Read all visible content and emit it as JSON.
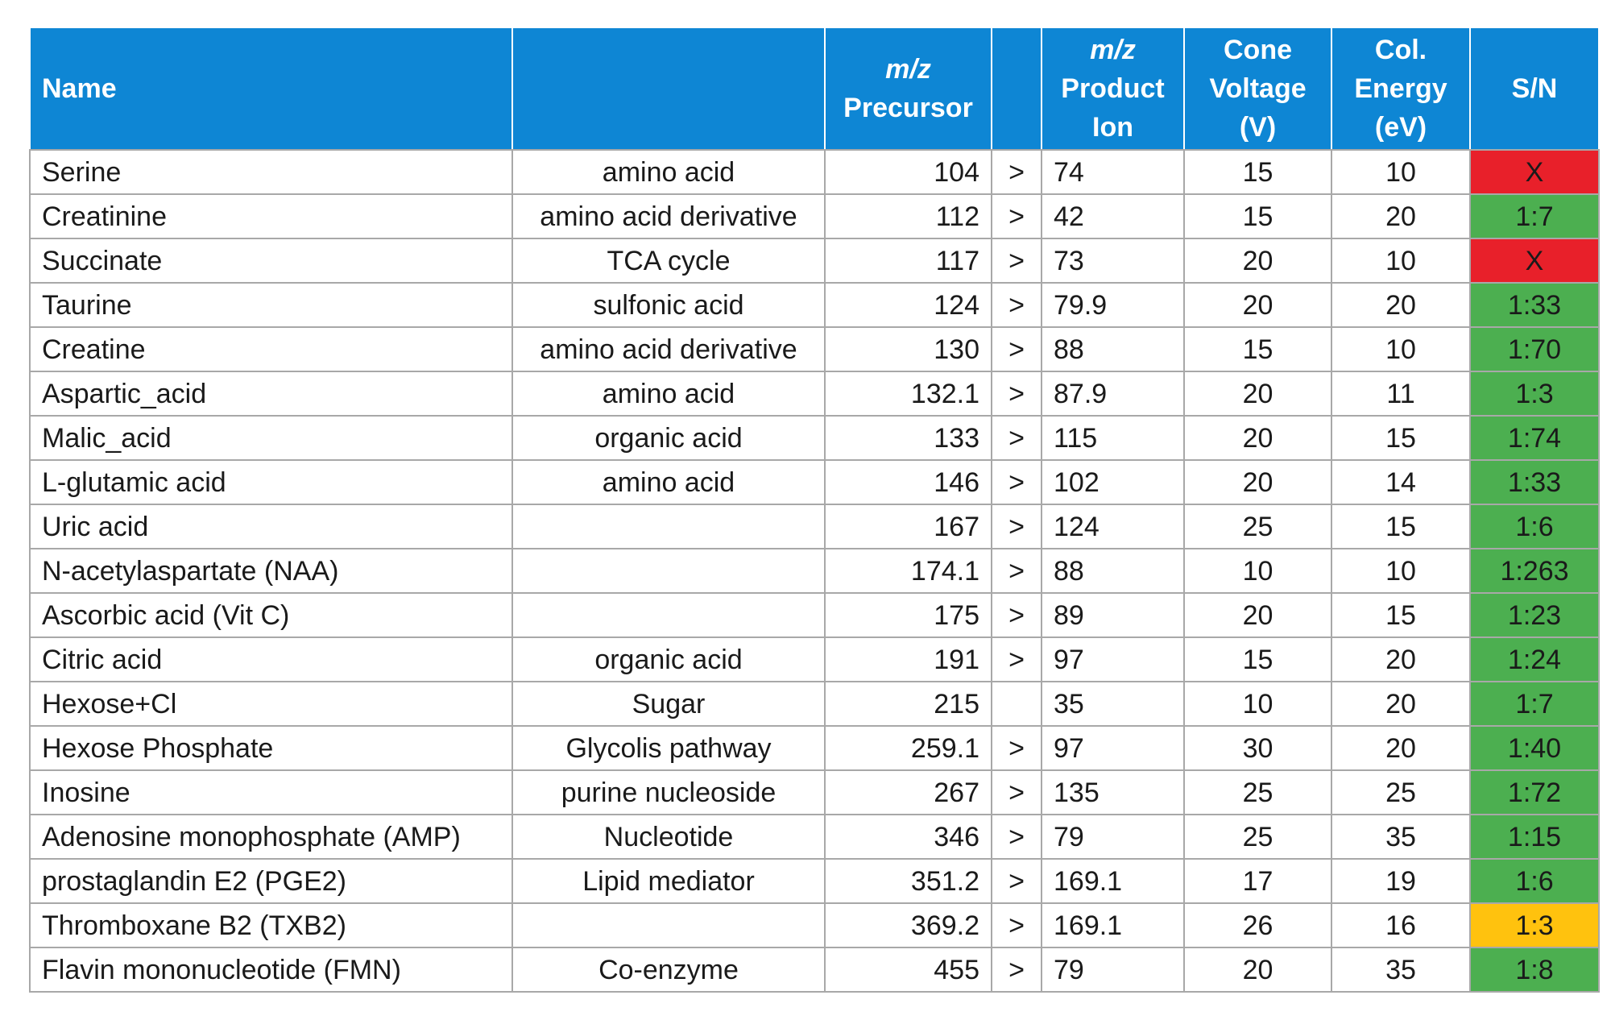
{
  "colors": {
    "header_bg": "#0e86d4",
    "red": "#e8202a",
    "green": "#4caf50",
    "amber": "#ffc20e"
  },
  "header": {
    "name": "Name",
    "class": "",
    "precursor": {
      "mz": "m/z",
      "label": "Precursor"
    },
    "arrow": "",
    "product": {
      "mz": "m/z",
      "line1": "Product",
      "line2": "Ion"
    },
    "cone": {
      "line1": "Cone",
      "line2": "Voltage",
      "line3": "(V)"
    },
    "colenergy": {
      "line1": "Col.",
      "line2": "Energy",
      "line3": "(eV)"
    },
    "sn": "S/N"
  },
  "rows": [
    {
      "name": "Serine",
      "class": "amino acid",
      "precursor": "104",
      "arrow": ">",
      "product": "74",
      "cone": "15",
      "col": "10",
      "sn": "X",
      "sn_color": "#e8202a"
    },
    {
      "name": "Creatinine",
      "class": "amino acid derivative",
      "precursor": "112",
      "arrow": ">",
      "product": "42",
      "cone": "15",
      "col": "20",
      "sn": "1:7",
      "sn_color": "#4caf50"
    },
    {
      "name": "Succinate",
      "class": "TCA cycle",
      "precursor": "117",
      "arrow": ">",
      "product": "73",
      "cone": "20",
      "col": "10",
      "sn": "X",
      "sn_color": "#e8202a"
    },
    {
      "name": "Taurine",
      "class": "sulfonic acid",
      "precursor": "124",
      "arrow": ">",
      "product": "79.9",
      "cone": "20",
      "col": "20",
      "sn": "1:33",
      "sn_color": "#4caf50"
    },
    {
      "name": "Creatine",
      "class": "amino acid derivative",
      "precursor": "130",
      "arrow": ">",
      "product": "88",
      "cone": "15",
      "col": "10",
      "sn": "1:70",
      "sn_color": "#4caf50"
    },
    {
      "name": "Aspartic_acid",
      "class": "amino acid",
      "precursor": "132.1",
      "arrow": ">",
      "product": "87.9",
      "cone": "20",
      "col": "11",
      "sn": "1:3",
      "sn_color": "#4caf50"
    },
    {
      "name": "Malic_acid",
      "class": "organic acid",
      "precursor": "133",
      "arrow": ">",
      "product": "115",
      "cone": "20",
      "col": "15",
      "sn": "1:74",
      "sn_color": "#4caf50"
    },
    {
      "name": "L-glutamic acid",
      "class": "amino acid",
      "precursor": "146",
      "arrow": ">",
      "product": "102",
      "cone": "20",
      "col": "14",
      "sn": "1:33",
      "sn_color": "#4caf50"
    },
    {
      "name": "Uric acid",
      "class": "",
      "precursor": "167",
      "arrow": ">",
      "product": "124",
      "cone": "25",
      "col": "15",
      "sn": "1:6",
      "sn_color": "#4caf50"
    },
    {
      "name": "N-acetylaspartate (NAA)",
      "class": "",
      "precursor": "174.1",
      "arrow": ">",
      "product": "88",
      "cone": "10",
      "col": "10",
      "sn": "1:263",
      "sn_color": "#4caf50"
    },
    {
      "name": "Ascorbic acid (Vit C)",
      "class": "",
      "precursor": "175",
      "arrow": ">",
      "product": "89",
      "cone": "20",
      "col": "15",
      "sn": "1:23",
      "sn_color": "#4caf50"
    },
    {
      "name": "Citric acid",
      "class": "organic acid",
      "precursor": "191",
      "arrow": ">",
      "product": "97",
      "cone": "15",
      "col": "20",
      "sn": "1:24",
      "sn_color": "#4caf50"
    },
    {
      "name": "Hexose+Cl",
      "class": "Sugar",
      "precursor": "215",
      "arrow": "",
      "product": "35",
      "cone": "10",
      "col": "20",
      "sn": "1:7",
      "sn_color": "#4caf50"
    },
    {
      "name": "Hexose Phosphate",
      "class": "Glycolis pathway",
      "precursor": "259.1",
      "arrow": ">",
      "product": "97",
      "cone": "30",
      "col": "20",
      "sn": "1:40",
      "sn_color": "#4caf50"
    },
    {
      "name": "Inosine",
      "class": "purine nucleoside",
      "precursor": "267",
      "arrow": ">",
      "product": "135",
      "cone": "25",
      "col": "25",
      "sn": "1:72",
      "sn_color": "#4caf50"
    },
    {
      "name": "Adenosine monophosphate (AMP)",
      "class": "Nucleotide",
      "precursor": "346",
      "arrow": ">",
      "product": "79",
      "cone": "25",
      "col": "35",
      "sn": "1:15",
      "sn_color": "#4caf50"
    },
    {
      "name": "prostaglandin E2 (PGE2)",
      "class": "Lipid mediator",
      "precursor": "351.2",
      "arrow": ">",
      "product": "169.1",
      "cone": "17",
      "col": "19",
      "sn": "1:6",
      "sn_color": "#4caf50"
    },
    {
      "name": "Thromboxane B2 (TXB2)",
      "class": "",
      "precursor": "369.2",
      "arrow": ">",
      "product": "169.1",
      "cone": "26",
      "col": "16",
      "sn": "1:3",
      "sn_color": "#ffc20e"
    },
    {
      "name": "Flavin mononucleotide (FMN)",
      "class": "Co-enzyme",
      "precursor": "455",
      "arrow": ">",
      "product": "79",
      "cone": "20",
      "col": "35",
      "sn": "1:8",
      "sn_color": "#4caf50"
    }
  ]
}
